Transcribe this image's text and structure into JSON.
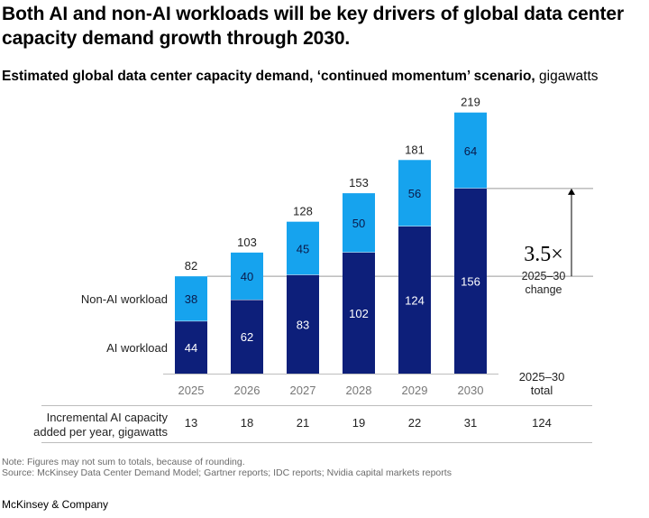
{
  "headline": "Both AI and non-AI workloads will be key drivers of global data center capacity demand growth through 2030.",
  "subtitle": {
    "bold": "Estimated global data center capacity demand, ‘continued momentum’ scenario,",
    "unit": " gigawatts"
  },
  "chart_data": {
    "type": "bar",
    "stacked": true,
    "categories": [
      "2025",
      "2026",
      "2027",
      "2028",
      "2029",
      "2030"
    ],
    "series": [
      {
        "name": "AI workload",
        "values": [
          44,
          62,
          83,
          102,
          124,
          156
        ],
        "color": "#0d1f7a"
      },
      {
        "name": "Non-AI workload",
        "values": [
          38,
          40,
          45,
          50,
          56,
          64
        ],
        "color": "#16a3ee"
      }
    ],
    "totals": [
      82,
      103,
      128,
      153,
      181,
      219
    ],
    "ylim": [
      0,
      219
    ],
    "annotation": {
      "value": "3.5×",
      "label_line1": "2025–30",
      "label_line2": "change"
    },
    "extra_column_header": {
      "line1": "2025–30",
      "line2": "total"
    },
    "table": {
      "row_label_line1": "Incremental AI capacity",
      "row_label_line2": "added per year, gigawatts",
      "values": [
        "13",
        "18",
        "21",
        "19",
        "22",
        "31"
      ],
      "total": "124"
    }
  },
  "footnotes": {
    "note": "Note: Figures may not sum to totals, because of rounding.",
    "source": "Source: McKinsey Data Center Demand Model; Gartner reports; IDC reports; Nvidia capital markets reports"
  },
  "brand": "McKinsey & Company",
  "colors": {
    "ai": "#0d1f7a",
    "non_ai": "#16a3ee",
    "rule": "#bdbdbd",
    "muted": "#6b6b6b"
  }
}
